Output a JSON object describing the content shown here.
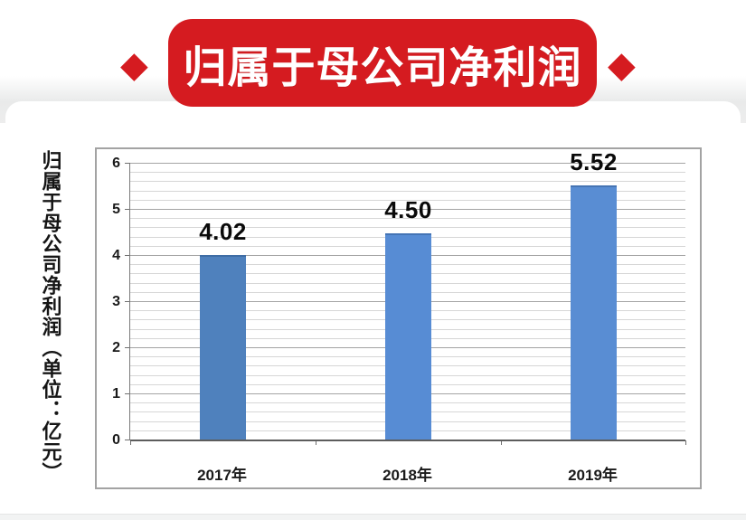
{
  "banner": {
    "title": "归属于母公司净利润",
    "diamond_glyph": "◆",
    "bg_color": "#d51b20",
    "text_color": "#ffffff"
  },
  "y_axis_title": "归属于母公司净利润（单位：亿元）",
  "chart_data": {
    "type": "bar",
    "title": "归属于母公司净利润",
    "categories": [
      "2017年",
      "2018年",
      "2019年"
    ],
    "values": [
      4.02,
      4.5,
      5.52
    ],
    "data_labels": [
      "4.02",
      "4.50",
      "5.52"
    ],
    "bar_colors": [
      "#4f81bd",
      "#578cd4",
      "#598dd3"
    ],
    "ylabel": "归属于母公司净利润（单位：亿元）",
    "xlabel": "",
    "ylim": [
      0,
      6
    ],
    "y_major_step": 1,
    "y_minor_step": 0.2,
    "y_tick_labels": [
      "0",
      "1",
      "2",
      "3",
      "4",
      "5",
      "6"
    ],
    "grid": "on",
    "legend": "none"
  }
}
